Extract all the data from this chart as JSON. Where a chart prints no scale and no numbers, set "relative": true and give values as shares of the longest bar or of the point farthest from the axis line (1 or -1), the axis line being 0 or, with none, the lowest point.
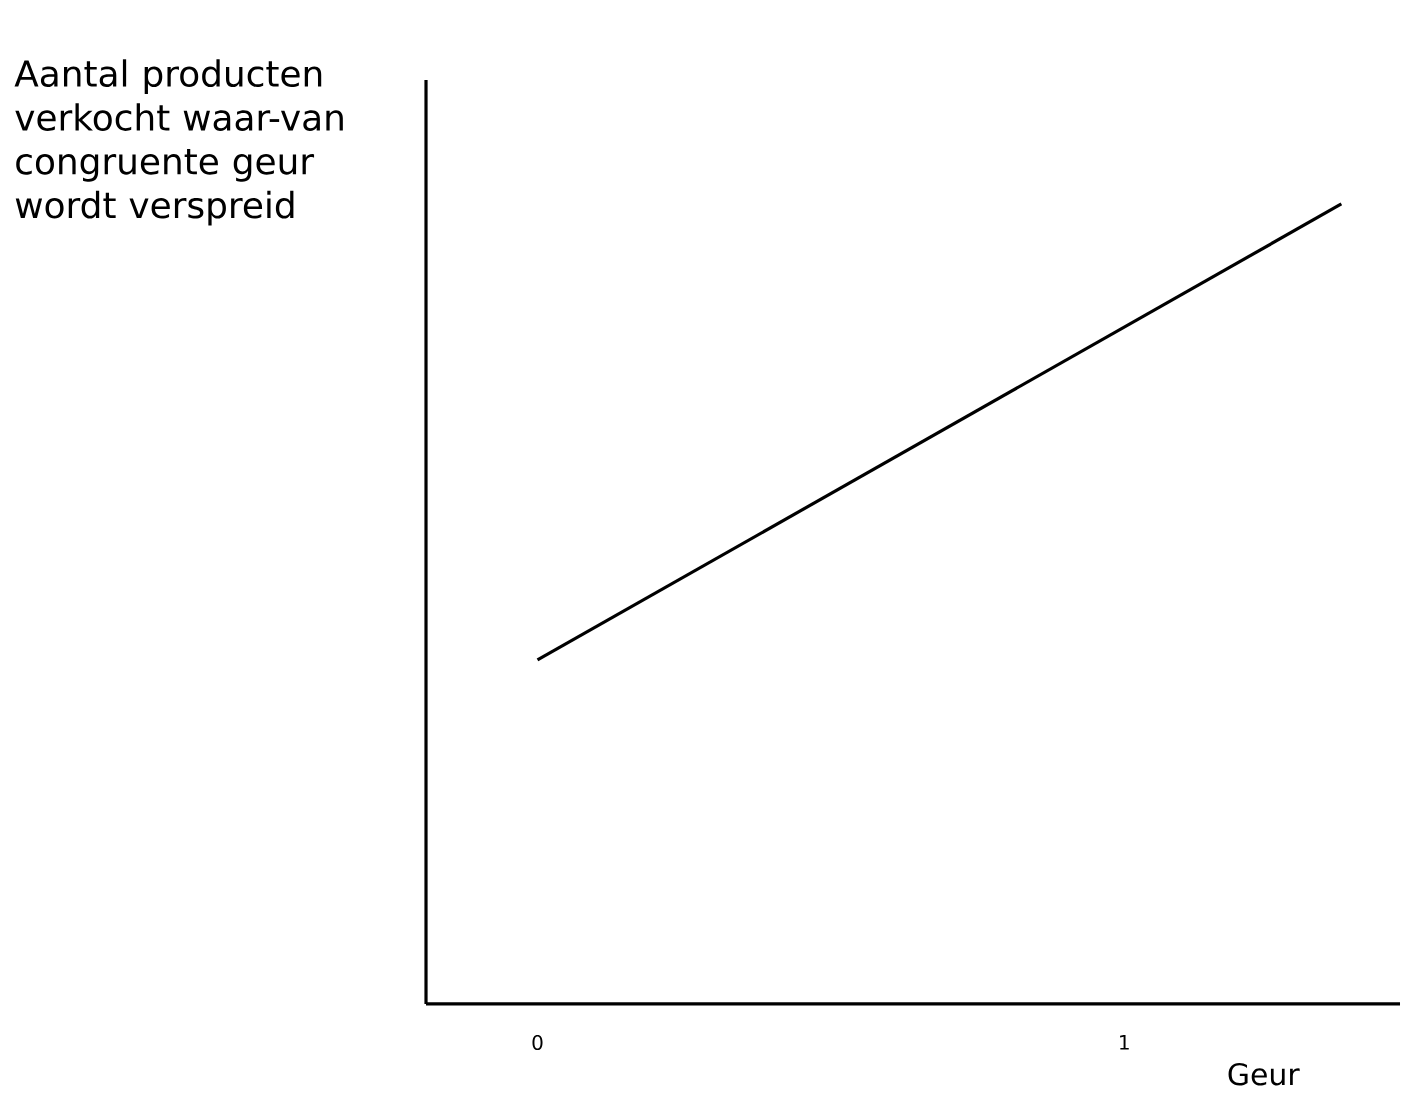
{
  "chart_data": {
    "type": "line",
    "xlabel": "Geur",
    "ylabel": "Aantal producten verkocht waar-van congruente geur wordt verspreid",
    "relative": true,
    "x": [
      0,
      1.37
    ],
    "xlim": [
      -0.19,
      1.47
    ],
    "xticks": [
      0,
      1
    ],
    "series": [
      {
        "color": "#000000",
        "values": [
          0.43,
          1
        ]
      }
    ]
  }
}
